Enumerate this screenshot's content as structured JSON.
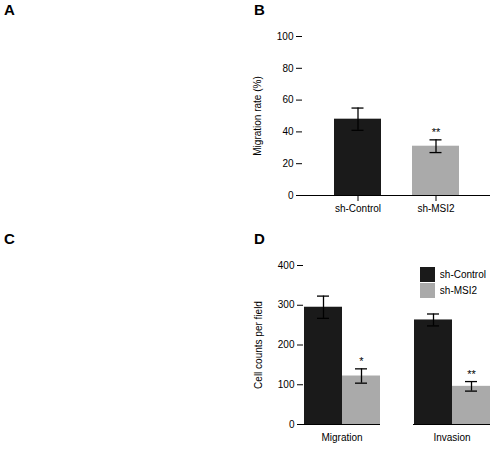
{
  "chart_data": [
    {
      "type": "blank",
      "title": "A"
    },
    {
      "type": "bar",
      "title": "B",
      "categories": [
        "sh-Control",
        "sh-MSI2"
      ],
      "values": [
        48,
        31
      ],
      "errors": [
        7,
        4
      ],
      "colors": [
        "#1a1a1a",
        "#aaaaaa"
      ],
      "significance": [
        null,
        "**"
      ],
      "y_label": "Migration rate (%)",
      "ylim": [
        0,
        100
      ],
      "yticks": [
        0,
        20,
        40,
        60,
        80,
        100
      ]
    },
    {
      "type": "blank",
      "title": "C"
    },
    {
      "type": "bar",
      "title": "D",
      "categories": [
        "Migration",
        "Invasion"
      ],
      "series": [
        {
          "name": "sh-Control",
          "color": "#1a1a1a",
          "values": [
            295,
            263
          ],
          "errors": [
            28,
            15
          ]
        },
        {
          "name": "sh-MSI2",
          "color": "#aaaaaa",
          "values": [
            122,
            96
          ],
          "errors": [
            18,
            12
          ],
          "significance": [
            "*",
            "**"
          ]
        }
      ],
      "y_label": "Cell counts per field",
      "ylim": [
        0,
        400
      ],
      "yticks": [
        0,
        100,
        200,
        300,
        400
      ],
      "legend": "upper right"
    }
  ]
}
